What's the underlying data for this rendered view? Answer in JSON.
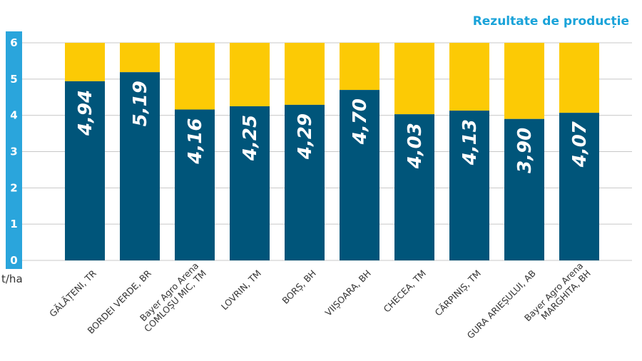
{
  "header": {
    "title": "Rezultate de producție"
  },
  "colors": {
    "title": "#1aa3d9",
    "axis_bar": "#2aa5dc",
    "bar_value": "#00557a",
    "bar_top": "#fcca05",
    "grid": "#c8c8c8",
    "value_text": "#ffffff",
    "category_text": "#333333"
  },
  "chart_data": {
    "type": "bar",
    "stacked": true,
    "title": "Rezultate de producție",
    "ylabel": "t/ha",
    "ylim": [
      0,
      6
    ],
    "yticks": [
      "0",
      "1",
      "2",
      "3",
      "4",
      "5",
      "6"
    ],
    "grid": true,
    "categories": [
      [
        "GĂLĂȚENI, TR"
      ],
      [
        "BORDEI VERDE, BR"
      ],
      [
        "Bayer Agro Arena",
        "COMLOȘU MIC, TM"
      ],
      [
        "LOVRIN, TM"
      ],
      [
        "BORȘ, BH"
      ],
      [
        "VIIȘOARA, BH"
      ],
      [
        "CHECEA, TM"
      ],
      [
        "CĂRPINIȘ, TM"
      ],
      [
        "GURA ARIEȘULUI, AB"
      ],
      [
        "Bayer Agro Arena",
        "MARGHITA, BH"
      ]
    ],
    "values": [
      4.94,
      5.19,
      4.16,
      4.25,
      4.29,
      4.7,
      4.03,
      4.13,
      3.9,
      4.07
    ],
    "value_labels": [
      "4,94",
      "5,19",
      "4,16",
      "4,25",
      "4,29",
      "4,70",
      "4,03",
      "4,13",
      "3,90",
      "4,07"
    ],
    "bar_total": 6
  }
}
